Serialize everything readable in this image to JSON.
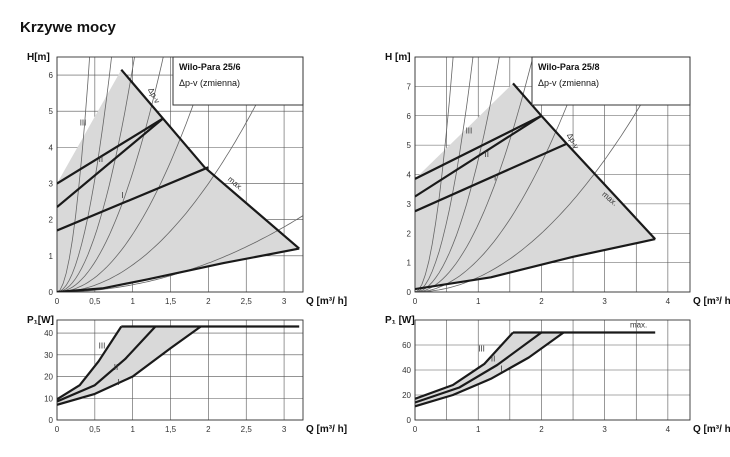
{
  "page": {
    "title": "Krzywe mocy"
  },
  "chart_data": [
    {
      "type": "line",
      "panel": "head",
      "model": "Wilo-Para  25/6",
      "mode": "Δp-v (zmienna)",
      "xlabel": "Q [m³/ h]",
      "ylabel": "H[m]",
      "xlim": [
        0,
        3.25
      ],
      "ylim": [
        0,
        6.5
      ],
      "xticks": [
        0,
        0.5,
        1,
        1.5,
        2,
        2.5,
        3
      ],
      "xtick_labels": [
        "0",
        "0,5",
        "1",
        "1,5",
        "2",
        "2,5",
        "3"
      ],
      "yticks": [
        0,
        1,
        2,
        3,
        4,
        5,
        6
      ],
      "ytick_labels": [
        "0",
        "1",
        "2",
        "3",
        "4",
        "5",
        "6"
      ],
      "xgrid": [
        0,
        0.5,
        1,
        1.5,
        2,
        2.5,
        3
      ],
      "ygrid": [
        0,
        1,
        2,
        3,
        4,
        5,
        6
      ],
      "operating_area": [
        [
          0,
          3.0
        ],
        [
          0.85,
          6.15
        ],
        [
          1.4,
          4.8
        ],
        [
          1.95,
          3.45
        ],
        [
          3.2,
          1.2
        ],
        [
          2.2,
          0.8
        ],
        [
          1.2,
          0.35
        ],
        [
          0.6,
          0.1
        ],
        [
          0,
          0
        ]
      ],
      "series": [
        {
          "label": "III",
          "points": [
            [
              0,
              3.0
            ],
            [
              1.4,
              4.8
            ]
          ]
        },
        {
          "label": "II",
          "points": [
            [
              0,
              2.35
            ],
            [
              1.4,
              4.8
            ]
          ]
        },
        {
          "label": "I",
          "points": [
            [
              0,
              1.7
            ],
            [
              2.0,
              3.45
            ]
          ]
        },
        {
          "label": "max.",
          "points": [
            [
              0.85,
              6.15
            ],
            [
              1.95,
              3.45
            ],
            [
              3.2,
              1.2
            ]
          ]
        },
        {
          "label": "",
          "points": [
            [
              0,
              0
            ],
            [
              0.6,
              0.1
            ],
            [
              1.2,
              0.35
            ],
            [
              2.2,
              0.8
            ],
            [
              3.2,
              1.2
            ]
          ]
        }
      ],
      "system_curve_coeffs": [
        35,
        12.5,
        6.2,
        3.3,
        1.6,
        0.75,
        0.2
      ],
      "annotations": [
        {
          "text": "III",
          "x": 0.3,
          "y": 4.6
        },
        {
          "text": "II",
          "x": 0.55,
          "y": 3.6
        },
        {
          "text": "I",
          "x": 0.85,
          "y": 2.6
        },
        {
          "text": "Δp-v",
          "x": 1.2,
          "y": 5.6
        },
        {
          "text": "max.",
          "x": 2.25,
          "y": 3.1
        }
      ]
    },
    {
      "type": "line",
      "panel": "head",
      "model": "Wilo-Para  25/8",
      "mode": "Δp-v (zmienna)",
      "xlabel": "Q [m³/ h]",
      "ylabel": "H [m]",
      "xlim": [
        0,
        4.35
      ],
      "ylim": [
        0,
        8
      ],
      "xticks": [
        0,
        1,
        2,
        3,
        4
      ],
      "xtick_labels": [
        "0",
        "1",
        "2",
        "3",
        "4"
      ],
      "yticks": [
        0,
        1,
        2,
        3,
        4,
        5,
        6,
        7
      ],
      "ytick_labels": [
        "0",
        "1",
        "2",
        "3",
        "4",
        "5",
        "6",
        "7"
      ],
      "xgrid": [
        0,
        0.5,
        1,
        1.5,
        2,
        2.5,
        3,
        3.5,
        4
      ],
      "ygrid": [
        0,
        1,
        2,
        3,
        4,
        5,
        6,
        7
      ],
      "operating_area": [
        [
          0,
          3.85
        ],
        [
          1.55,
          7.1
        ],
        [
          2.0,
          6.0
        ],
        [
          2.4,
          5.05
        ],
        [
          3.8,
          1.8
        ],
        [
          2.5,
          1.2
        ],
        [
          1.2,
          0.5
        ],
        [
          0,
          0.1
        ]
      ],
      "series": [
        {
          "label": "III",
          "points": [
            [
              0,
              3.85
            ],
            [
              2.0,
              6.0
            ]
          ]
        },
        {
          "label": "II",
          "points": [
            [
              0,
              3.25
            ],
            [
              2.0,
              6.0
            ]
          ]
        },
        {
          "label": "I",
          "points": [
            [
              0,
              2.75
            ],
            [
              2.4,
              5.05
            ]
          ]
        },
        {
          "label": "max.",
          "points": [
            [
              1.55,
              7.1
            ],
            [
              2.0,
              6.0
            ],
            [
              2.4,
              5.05
            ],
            [
              3.8,
              1.8
            ]
          ]
        },
        {
          "label": "",
          "points": [
            [
              0,
              0.1
            ],
            [
              1.2,
              0.5
            ],
            [
              2.5,
              1.2
            ],
            [
              3.8,
              1.8
            ]
          ]
        }
      ],
      "system_curve_coeffs": [
        22,
        9.5,
        4.5,
        2.3,
        1.1,
        0.5
      ],
      "annotations": [
        {
          "text": "III",
          "x": 0.8,
          "y": 5.4
        },
        {
          "text": "II",
          "x": 1.1,
          "y": 4.6
        },
        {
          "text": "I",
          "x": 1.25,
          "y": 3.8
        },
        {
          "text": "Δp-v",
          "x": 2.4,
          "y": 5.35
        },
        {
          "text": "max.",
          "x": 2.95,
          "y": 3.3
        }
      ]
    },
    {
      "type": "line",
      "panel": "power",
      "xlabel": "Q [m³/ h]",
      "ylabel": "P₁[W]",
      "xlim": [
        0,
        3.25
      ],
      "ylim": [
        0,
        46
      ],
      "xticks": [
        0,
        0.5,
        1,
        1.5,
        2,
        2.5,
        3
      ],
      "xtick_labels": [
        "0",
        "0,5",
        "1",
        "1,5",
        "2",
        "2,5",
        "3"
      ],
      "yticks": [
        0,
        10,
        20,
        30,
        40
      ],
      "ytick_labels": [
        "0",
        "10",
        "20",
        "30",
        "40"
      ],
      "xgrid": [
        0,
        0.5,
        1,
        1.5,
        2,
        2.5,
        3
      ],
      "ygrid": [
        0,
        10,
        20,
        30,
        40
      ],
      "operating_area": [
        [
          0,
          9.5
        ],
        [
          0.3,
          16
        ],
        [
          0.55,
          27
        ],
        [
          0.85,
          43
        ],
        [
          1.9,
          43
        ],
        [
          1.5,
          33
        ],
        [
          1.0,
          20
        ],
        [
          0.5,
          12
        ],
        [
          0,
          7
        ]
      ],
      "series": [
        {
          "label": "III",
          "points": [
            [
              0,
              9.5
            ],
            [
              0.3,
              16
            ],
            [
              0.55,
              27
            ],
            [
              0.85,
              43
            ]
          ]
        },
        {
          "label": "II",
          "points": [
            [
              0,
              8.5
            ],
            [
              0.5,
              16
            ],
            [
              0.9,
              28
            ],
            [
              1.3,
              43
            ]
          ]
        },
        {
          "label": "I",
          "points": [
            [
              0,
              7
            ],
            [
              0.5,
              12
            ],
            [
              1.0,
              20
            ],
            [
              1.5,
              33
            ],
            [
              1.9,
              43
            ]
          ]
        },
        {
          "label": "",
          "points": [
            [
              0.85,
              43
            ],
            [
              3.2,
              43
            ]
          ]
        }
      ],
      "annotations": [
        {
          "text": "III",
          "x": 0.55,
          "y": 33
        },
        {
          "text": "II",
          "x": 0.75,
          "y": 23
        },
        {
          "text": "I",
          "x": 0.8,
          "y": 16
        }
      ]
    },
    {
      "type": "line",
      "panel": "power",
      "xlabel": "Q [m³/ h]",
      "ylabel": "P₁ [W]",
      "xlim": [
        0,
        4.35
      ],
      "ylim": [
        0,
        80
      ],
      "xticks": [
        0,
        1,
        2,
        3,
        4
      ],
      "xtick_labels": [
        "0",
        "1",
        "2",
        "3",
        "4"
      ],
      "yticks": [
        0,
        20,
        40,
        60
      ],
      "ytick_labels": [
        "0",
        "20",
        "40",
        "60"
      ],
      "xgrid": [
        0,
        0.5,
        1,
        1.5,
        2,
        2.5,
        3,
        3.5,
        4
      ],
      "ygrid": [
        0,
        20,
        40,
        60
      ],
      "operating_area": [
        [
          0,
          17
        ],
        [
          0.6,
          28
        ],
        [
          1.1,
          45
        ],
        [
          1.55,
          70
        ],
        [
          2.35,
          70
        ],
        [
          1.8,
          50
        ],
        [
          1.2,
          33
        ],
        [
          0.6,
          20
        ],
        [
          0,
          11
        ]
      ],
      "series": [
        {
          "label": "III",
          "points": [
            [
              0,
              17
            ],
            [
              0.6,
              28
            ],
            [
              1.1,
              45
            ],
            [
              1.55,
              70
            ]
          ]
        },
        {
          "label": "II",
          "points": [
            [
              0,
              14
            ],
            [
              0.7,
              26
            ],
            [
              1.3,
              44
            ],
            [
              2.0,
              70
            ]
          ]
        },
        {
          "label": "I",
          "points": [
            [
              0,
              11
            ],
            [
              0.6,
              20
            ],
            [
              1.2,
              33
            ],
            [
              1.8,
              50
            ],
            [
              2.35,
              70
            ]
          ]
        },
        {
          "label": "max.",
          "points": [
            [
              1.55,
              70
            ],
            [
              3.8,
              70
            ]
          ]
        }
      ],
      "annotations": [
        {
          "text": "III",
          "x": 1.0,
          "y": 55
        },
        {
          "text": "II",
          "x": 1.2,
          "y": 47
        },
        {
          "text": "I",
          "x": 1.35,
          "y": 39
        },
        {
          "text": "max.",
          "x": 3.4,
          "y": 74
        }
      ]
    }
  ]
}
